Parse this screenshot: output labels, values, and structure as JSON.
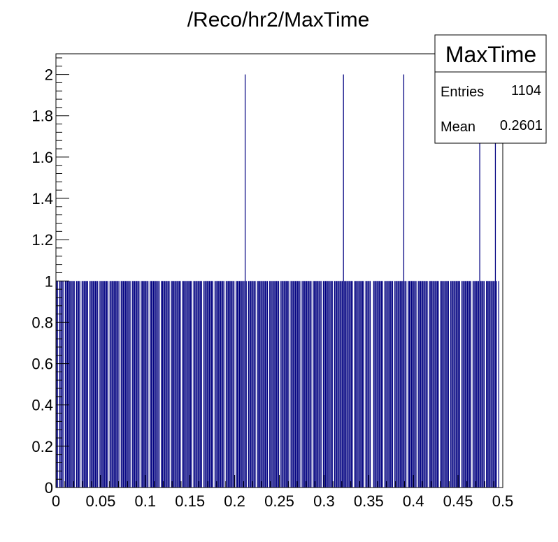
{
  "chart_data": {
    "type": "bar",
    "title": "/Reco/hr2/MaxTime",
    "xlabel": "",
    "ylabel": "",
    "xlim": [
      0,
      0.5
    ],
    "ylim": [
      0,
      2.1
    ],
    "x_ticks": [
      "0",
      "0.05",
      "0.1",
      "0.15",
      "0.2",
      "0.25",
      "0.3",
      "0.35",
      "0.4",
      "0.45",
      "0.5"
    ],
    "y_ticks": [
      "0",
      "0.2",
      "0.4",
      "0.6",
      "0.8",
      "1",
      "1.2",
      "1.4",
      "1.6",
      "1.8",
      "2"
    ],
    "bar_color": "#000080",
    "grid": false,
    "bins": {
      "x_min": 0,
      "bin_width": 0.00125,
      "counts": [
        1,
        1,
        0,
        1,
        1,
        1,
        1,
        0,
        1,
        1,
        1,
        1,
        1,
        1,
        1,
        1,
        1,
        0,
        1,
        1,
        1,
        1,
        0,
        1,
        1,
        1,
        1,
        1,
        1,
        0,
        1,
        1,
        1,
        1,
        1,
        1,
        1,
        1,
        0,
        1,
        1,
        1,
        1,
        1,
        1,
        1,
        1,
        0,
        1,
        1,
        1,
        1,
        1,
        1,
        1,
        1,
        1,
        0,
        1,
        1,
        1,
        1,
        1,
        1,
        1,
        1,
        1,
        0,
        1,
        1,
        1,
        1,
        1,
        1,
        1,
        0,
        1,
        1,
        1,
        1,
        1,
        1,
        1,
        0,
        1,
        1,
        1,
        1,
        1,
        1,
        1,
        1,
        1,
        0,
        1,
        1,
        1,
        1,
        1,
        1,
        1,
        1,
        0,
        1,
        1,
        1,
        1,
        1,
        1,
        1,
        1,
        1,
        0,
        1,
        1,
        1,
        1,
        1,
        1,
        1,
        1,
        1,
        0,
        1,
        1,
        1,
        1,
        1,
        1,
        1,
        1,
        0,
        1,
        1,
        1,
        1,
        1,
        1,
        1,
        1,
        1,
        0,
        1,
        1,
        1,
        1,
        1,
        1,
        1,
        1,
        1,
        0,
        1,
        1,
        1,
        1,
        1,
        1,
        1,
        1,
        0,
        1,
        1,
        1,
        1,
        1,
        1,
        1,
        1,
        2,
        1,
        0,
        1,
        1,
        1,
        1,
        1,
        1,
        1,
        0,
        1,
        1,
        1,
        1,
        1,
        1,
        1,
        1,
        1,
        1,
        0,
        1,
        1,
        1,
        1,
        1,
        1,
        1,
        1,
        1,
        0,
        1,
        1,
        1,
        1,
        1,
        1,
        1,
        1,
        0,
        1,
        1,
        1,
        1,
        1,
        1,
        1,
        1,
        1,
        0,
        1,
        1,
        1,
        1,
        1,
        1,
        1,
        1,
        1,
        0,
        1,
        1,
        1,
        1,
        1,
        1,
        1,
        1,
        0,
        1,
        1,
        1,
        1,
        1,
        1,
        1,
        1,
        1,
        0,
        1,
        1,
        1,
        1,
        1,
        1,
        1,
        1,
        2,
        1,
        1,
        1,
        1,
        1,
        1,
        1,
        1,
        0,
        1,
        1,
        1,
        1,
        1,
        1,
        1,
        1,
        1,
        0,
        1,
        1,
        1,
        1,
        1,
        0,
        0,
        1,
        1,
        1,
        1,
        1,
        1,
        1,
        1,
        1,
        0,
        1,
        1,
        1,
        1,
        1,
        1,
        1,
        1,
        0,
        1,
        1,
        1,
        1,
        1,
        1,
        1,
        1,
        2,
        1,
        1,
        0,
        1,
        1,
        1,
        1,
        1,
        1,
        1,
        1,
        0,
        1,
        1,
        1,
        1,
        1,
        1,
        1,
        1,
        1,
        0,
        1,
        1,
        1,
        1,
        1,
        1,
        1,
        1,
        1,
        0,
        1,
        1,
        1,
        1,
        1,
        1,
        1,
        1,
        0,
        1,
        1,
        1,
        1,
        1,
        1,
        1,
        1,
        1,
        0,
        1,
        1,
        1,
        1,
        1,
        1,
        1,
        1,
        1,
        0,
        1,
        1,
        1,
        1,
        1,
        1,
        2,
        1,
        1,
        1,
        1,
        0,
        1,
        1,
        1,
        1,
        1,
        1,
        1,
        1,
        2,
        1,
        0,
        1,
        0
      ]
    }
  },
  "stats": {
    "name": "MaxTime",
    "entries_label": "Entries",
    "entries_value": "1104",
    "mean_label": "Mean",
    "mean_value": "0.2601"
  }
}
